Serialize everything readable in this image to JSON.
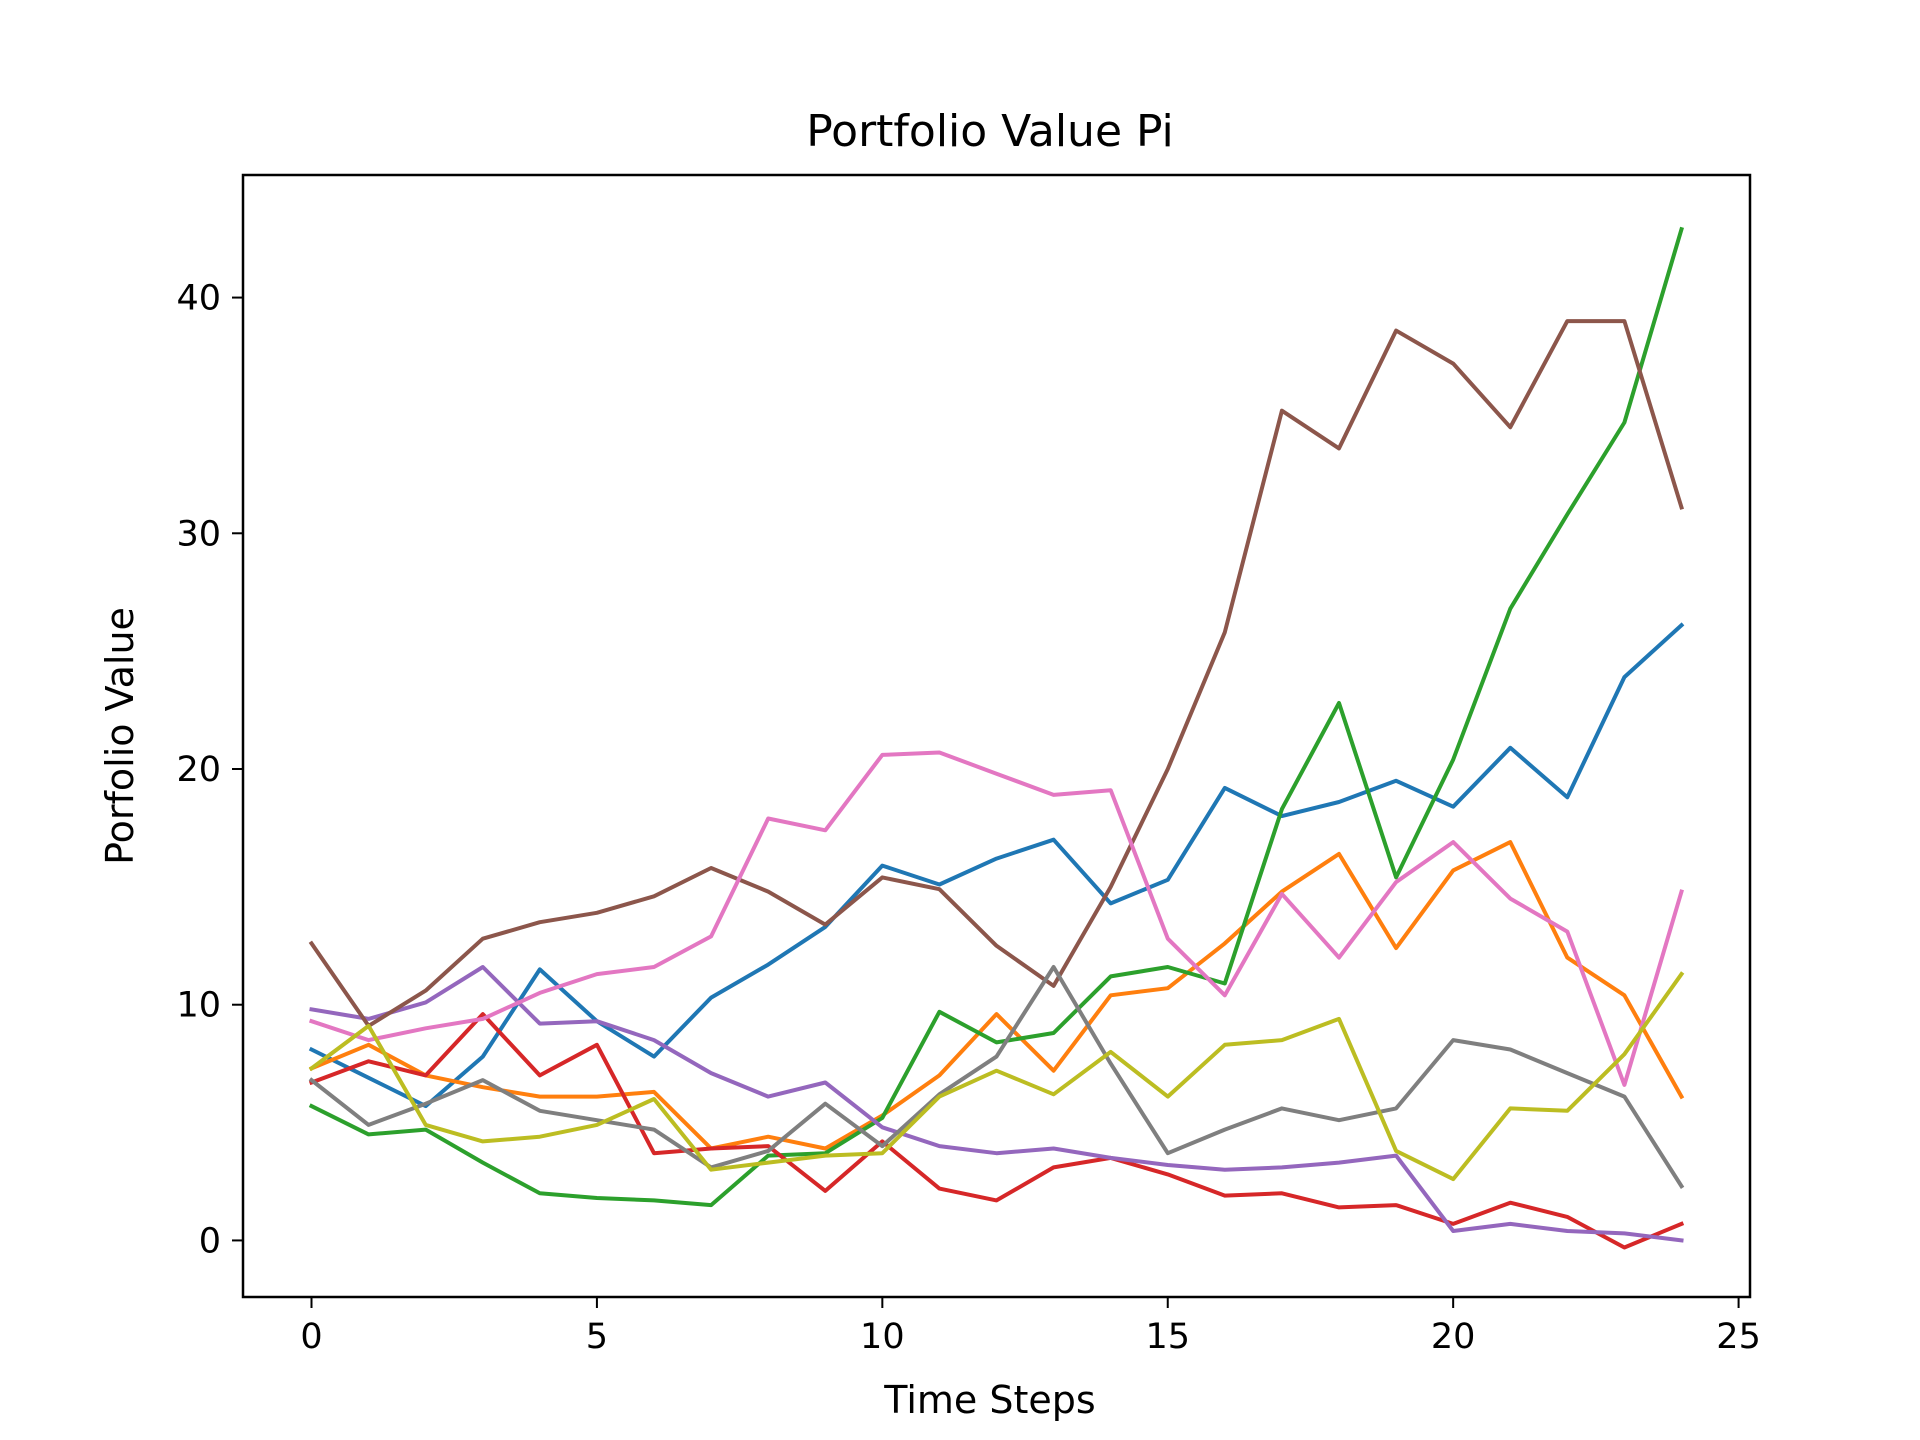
{
  "chart_data": {
    "type": "line",
    "title": "Portfolio Value Pi",
    "xlabel": "Time Steps",
    "ylabel": "Porfolio Value",
    "xlim": [
      -1.2,
      25.2
    ],
    "ylim": [
      -2.4,
      45.2
    ],
    "xticks": [
      0,
      5,
      10,
      15,
      20,
      25
    ],
    "yticks": [
      0,
      10,
      20,
      30,
      40
    ],
    "grid": false,
    "x": [
      0,
      1,
      2,
      3,
      4,
      5,
      6,
      7,
      8,
      9,
      10,
      11,
      12,
      13,
      14,
      15,
      16,
      17,
      18,
      19,
      20,
      21,
      22,
      23,
      24
    ],
    "series": [
      {
        "color": "#1f77b4",
        "values": [
          8.1,
          6.9,
          5.7,
          7.8,
          11.5,
          9.3,
          7.8,
          10.3,
          11.7,
          13.3,
          15.9,
          15.1,
          16.2,
          17.0,
          14.3,
          15.3,
          19.2,
          18.0,
          18.6,
          19.5,
          18.4,
          20.9,
          18.8,
          23.9,
          26.1
        ]
      },
      {
        "color": "#ff7f0e",
        "values": [
          7.3,
          8.3,
          7.0,
          6.5,
          6.1,
          6.1,
          6.3,
          3.9,
          4.4,
          3.9,
          5.3,
          7.0,
          9.6,
          7.2,
          10.4,
          10.7,
          12.6,
          14.8,
          16.4,
          12.4,
          15.7,
          16.9,
          12.0,
          10.4,
          6.1
        ]
      },
      {
        "color": "#2ca02c",
        "values": [
          5.7,
          4.5,
          4.7,
          3.3,
          2.0,
          1.8,
          1.7,
          1.5,
          3.6,
          3.7,
          5.2,
          9.7,
          8.4,
          8.8,
          11.2,
          11.6,
          10.9,
          18.3,
          22.8,
          15.4,
          20.4,
          26.8,
          30.8,
          34.7,
          42.9
        ]
      },
      {
        "color": "#d62728",
        "values": [
          6.7,
          7.6,
          7.0,
          9.6,
          7.0,
          8.3,
          3.7,
          3.9,
          4.0,
          2.1,
          4.2,
          2.2,
          1.7,
          3.1,
          3.5,
          2.8,
          1.9,
          2.0,
          1.4,
          1.5,
          0.7,
          1.6,
          1.0,
          -0.3,
          0.7
        ]
      },
      {
        "color": "#9467bd",
        "values": [
          9.8,
          9.4,
          10.1,
          11.6,
          9.2,
          9.3,
          8.5,
          7.1,
          6.1,
          6.7,
          4.8,
          4.0,
          3.7,
          3.9,
          3.5,
          3.2,
          3.0,
          3.1,
          3.3,
          3.6,
          0.4,
          0.7,
          0.4,
          0.3,
          0.0
        ]
      },
      {
        "color": "#8c564b",
        "values": [
          12.6,
          9.1,
          10.6,
          12.8,
          13.5,
          13.9,
          14.6,
          15.8,
          14.8,
          13.4,
          15.4,
          14.9,
          12.5,
          10.8,
          15.0,
          20.0,
          25.8,
          35.2,
          33.6,
          38.6,
          37.2,
          34.5,
          39.0,
          39.0,
          31.1
        ]
      },
      {
        "color": "#e377c2",
        "values": [
          9.3,
          8.5,
          9.0,
          9.4,
          10.5,
          11.3,
          11.6,
          12.9,
          17.9,
          17.4,
          20.6,
          20.7,
          19.8,
          18.9,
          19.1,
          12.8,
          10.4,
          14.7,
          12.0,
          15.2,
          16.9,
          14.5,
          13.1,
          6.6,
          14.8
        ]
      },
      {
        "color": "#7f7f7f",
        "values": [
          6.8,
          4.9,
          5.8,
          6.8,
          5.5,
          5.1,
          4.7,
          3.1,
          3.8,
          5.8,
          4.0,
          6.2,
          7.8,
          11.6,
          7.5,
          3.7,
          4.7,
          5.6,
          5.1,
          5.6,
          8.5,
          8.1,
          7.1,
          6.1,
          2.3
        ]
      },
      {
        "color": "#bcbd22",
        "values": [
          7.3,
          9.1,
          4.9,
          4.2,
          4.4,
          4.9,
          6.0,
          3.0,
          3.3,
          3.6,
          3.7,
          6.1,
          7.2,
          6.2,
          8.0,
          6.1,
          8.3,
          8.5,
          9.4,
          3.8,
          2.6,
          5.6,
          5.5,
          7.9,
          11.3
        ]
      }
    ]
  }
}
